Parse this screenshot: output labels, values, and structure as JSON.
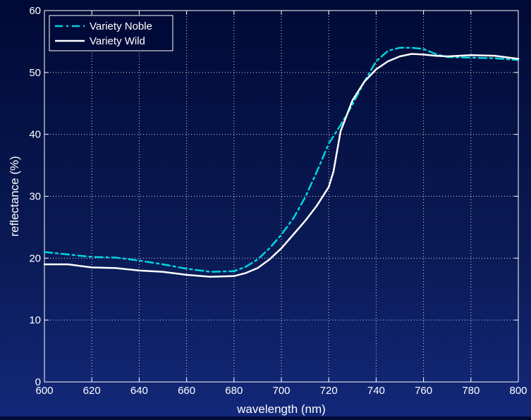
{
  "chart_data": {
    "type": "line",
    "title": "",
    "xlabel": "wavelength (nm)",
    "ylabel": "reflectance (%)",
    "xlim": [
      600,
      800
    ],
    "ylim": [
      0,
      60
    ],
    "xticks": [
      600,
      620,
      640,
      660,
      680,
      700,
      720,
      740,
      760,
      780,
      800
    ],
    "yticks": [
      0,
      10,
      20,
      30,
      40,
      50,
      60
    ],
    "grid": true,
    "legend_position": "top-left",
    "series": [
      {
        "name": "Variety Noble",
        "color": "#00d4e0",
        "style": "dash-dot",
        "x": [
          600,
          610,
          620,
          630,
          640,
          650,
          660,
          670,
          680,
          685,
          690,
          695,
          700,
          705,
          710,
          715,
          720,
          725,
          730,
          735,
          740,
          745,
          750,
          755,
          760,
          765,
          770,
          780,
          790,
          800
        ],
        "y": [
          21,
          20.6,
          20.2,
          20.1,
          19.6,
          19.0,
          18.3,
          17.8,
          17.9,
          18.6,
          19.8,
          21.6,
          23.8,
          26.4,
          29.8,
          34.0,
          38.5,
          41.5,
          44.8,
          48.5,
          51.8,
          53.5,
          54.0,
          54.0,
          53.8,
          53.0,
          52.5,
          52.4,
          52.3,
          52.0
        ]
      },
      {
        "name": "Variety Wild",
        "color": "#ffffff",
        "style": "solid",
        "x": [
          600,
          610,
          620,
          630,
          640,
          650,
          660,
          670,
          680,
          685,
          690,
          695,
          700,
          705,
          710,
          715,
          720,
          722,
          725,
          730,
          735,
          740,
          745,
          750,
          755,
          760,
          765,
          770,
          780,
          790,
          800
        ],
        "y": [
          19,
          19.0,
          18.5,
          18.4,
          18.0,
          17.8,
          17.3,
          17.0,
          17.1,
          17.6,
          18.4,
          19.8,
          21.6,
          23.8,
          26.0,
          28.5,
          31.5,
          34.0,
          40.5,
          45.5,
          48.5,
          50.5,
          51.8,
          52.6,
          53.0,
          52.9,
          52.7,
          52.6,
          52.8,
          52.7,
          52.2
        ]
      }
    ]
  }
}
